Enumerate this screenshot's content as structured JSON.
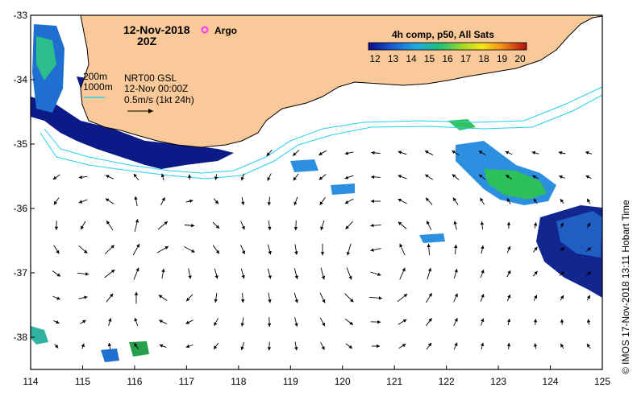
{
  "map": {
    "date": "12-Nov-2018",
    "time": "20Z",
    "argo_label": "Argo",
    "colorbar": {
      "title": "4h comp, p50, All Sats",
      "ticks": [
        "12",
        "13",
        "14",
        "15",
        "16",
        "17",
        "18",
        "19",
        "20"
      ]
    },
    "legend": {
      "depth_200": "200m",
      "depth_1000": "1000m",
      "current_source": "NRT00 GSL",
      "current_time": "12-Nov 00:00Z",
      "scale": "0.5m/s (1kt 24h)"
    },
    "credit": "© IMOS 17-Nov-2018 13:11 Hobart Time",
    "y_ticks": [
      "-33",
      "-34",
      "-35",
      "-36",
      "-37",
      "-38"
    ],
    "x_ticks": [
      "114",
      "115",
      "116",
      "117",
      "118",
      "119",
      "120",
      "121",
      "122",
      "123",
      "124",
      "125"
    ],
    "lon_range": [
      114,
      125
    ],
    "lat_range": [
      -38.5,
      -33
    ],
    "colors": {
      "land": "#f9c99a",
      "coastline": "#000000",
      "isobath": "#22d0f0",
      "argo": "#ff33ff",
      "sst_cold": "#06137a",
      "sst_mid": "#1abc66",
      "sst_warm": "#f6e81a"
    }
  }
}
